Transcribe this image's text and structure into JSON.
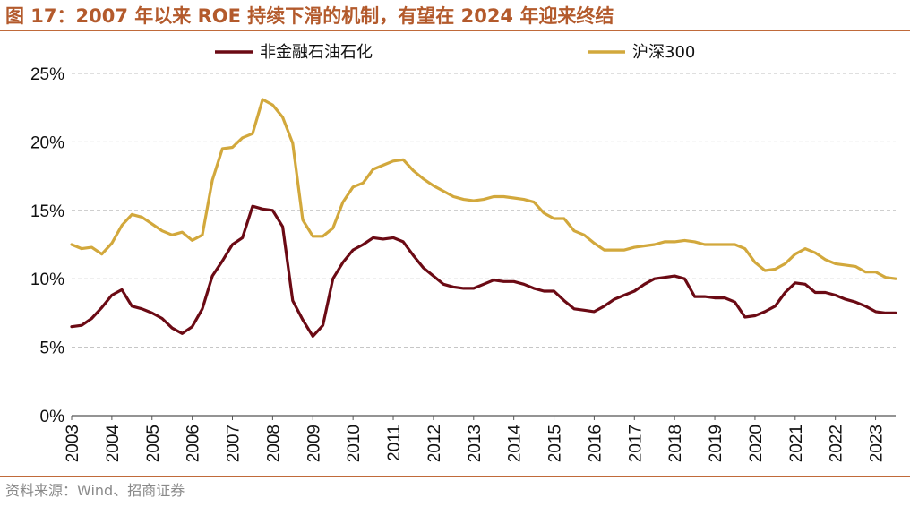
{
  "header": {
    "title": "图 17：2007 年以来 ROE 持续下滑的机制，有望在 2024 年迎来终结"
  },
  "footer": {
    "source": "资料来源：Wind、招商证券"
  },
  "colors": {
    "accent": "#c06a3a",
    "title": "#b35a2c",
    "series_a": "#6b0a14",
    "series_b": "#d2a83c",
    "grid": "#bfbfbf"
  },
  "chart_data": {
    "type": "line",
    "title": "",
    "xlabel": "",
    "ylabel": "",
    "x_range": [
      2003.0,
      2023.5
    ],
    "ylim": [
      0,
      25
    ],
    "y_ticks": [
      "0%",
      "5%",
      "10%",
      "15%",
      "20%",
      "25%"
    ],
    "y_tick_values": [
      0,
      5,
      10,
      15,
      20,
      25
    ],
    "x_ticks": [
      "2003",
      "2004",
      "2005",
      "2006",
      "2007",
      "2008",
      "2009",
      "2010",
      "2011",
      "2012",
      "2013",
      "2014",
      "2015",
      "2016",
      "2017",
      "2018",
      "2019",
      "2020",
      "2021",
      "2022",
      "2023"
    ],
    "grid": "horizontal-dashed",
    "legend_position": "top",
    "series": [
      {
        "name": "非金融石油石化",
        "color": "#6b0a14",
        "x": [
          2003.0,
          2003.25,
          2003.5,
          2003.75,
          2004.0,
          2004.25,
          2004.5,
          2004.75,
          2005.0,
          2005.25,
          2005.5,
          2005.75,
          2006.0,
          2006.25,
          2006.5,
          2006.75,
          2007.0,
          2007.25,
          2007.5,
          2007.75,
          2008.0,
          2008.25,
          2008.5,
          2008.75,
          2009.0,
          2009.25,
          2009.5,
          2009.75,
          2010.0,
          2010.25,
          2010.5,
          2010.75,
          2011.0,
          2011.25,
          2011.5,
          2011.75,
          2012.0,
          2012.25,
          2012.5,
          2012.75,
          2013.0,
          2013.25,
          2013.5,
          2013.75,
          2014.0,
          2014.25,
          2014.5,
          2014.75,
          2015.0,
          2015.25,
          2015.5,
          2015.75,
          2016.0,
          2016.25,
          2016.5,
          2016.75,
          2017.0,
          2017.25,
          2017.5,
          2017.75,
          2018.0,
          2018.25,
          2018.5,
          2018.75,
          2019.0,
          2019.25,
          2019.5,
          2019.75,
          2020.0,
          2020.25,
          2020.5,
          2020.75,
          2021.0,
          2021.25,
          2021.5,
          2021.75,
          2022.0,
          2022.25,
          2022.5,
          2022.75,
          2023.0,
          2023.25,
          2023.5
        ],
        "values": [
          6.5,
          6.6,
          7.1,
          7.9,
          8.8,
          9.2,
          8.0,
          7.8,
          7.5,
          7.1,
          6.4,
          6.0,
          6.5,
          7.8,
          10.2,
          11.3,
          12.5,
          13.0,
          15.3,
          15.1,
          15.0,
          13.8,
          8.4,
          7.0,
          5.8,
          6.6,
          10.0,
          11.2,
          12.1,
          12.5,
          13.0,
          12.9,
          13.0,
          12.7,
          11.7,
          10.8,
          10.2,
          9.6,
          9.4,
          9.3,
          9.3,
          9.6,
          9.9,
          9.8,
          9.8,
          9.6,
          9.3,
          9.1,
          9.1,
          8.4,
          7.8,
          7.7,
          7.6,
          8.0,
          8.5,
          8.8,
          9.1,
          9.6,
          10.0,
          10.1,
          10.2,
          10.0,
          8.7,
          8.7,
          8.6,
          8.6,
          8.3,
          7.2,
          7.3,
          7.6,
          8.0,
          9.0,
          9.7,
          9.6,
          9.0,
          9.0,
          8.8,
          8.5,
          8.3,
          8.0,
          7.6,
          7.5,
          7.5
        ]
      },
      {
        "name": "沪深300",
        "color": "#d2a83c",
        "x": [
          2003.0,
          2003.25,
          2003.5,
          2003.75,
          2004.0,
          2004.25,
          2004.5,
          2004.75,
          2005.0,
          2005.25,
          2005.5,
          2005.75,
          2006.0,
          2006.25,
          2006.5,
          2006.75,
          2007.0,
          2007.25,
          2007.5,
          2007.75,
          2008.0,
          2008.25,
          2008.5,
          2008.75,
          2009.0,
          2009.25,
          2009.5,
          2009.75,
          2010.0,
          2010.25,
          2010.5,
          2010.75,
          2011.0,
          2011.25,
          2011.5,
          2011.75,
          2012.0,
          2012.25,
          2012.5,
          2012.75,
          2013.0,
          2013.25,
          2013.5,
          2013.75,
          2014.0,
          2014.25,
          2014.5,
          2014.75,
          2015.0,
          2015.25,
          2015.5,
          2015.75,
          2016.0,
          2016.25,
          2016.5,
          2016.75,
          2017.0,
          2017.25,
          2017.5,
          2017.75,
          2018.0,
          2018.25,
          2018.5,
          2018.75,
          2019.0,
          2019.25,
          2019.5,
          2019.75,
          2020.0,
          2020.25,
          2020.5,
          2020.75,
          2021.0,
          2021.25,
          2021.5,
          2021.75,
          2022.0,
          2022.25,
          2022.5,
          2022.75,
          2023.0,
          2023.25,
          2023.5
        ],
        "values": [
          12.5,
          12.2,
          12.3,
          11.8,
          12.6,
          13.9,
          14.7,
          14.5,
          14.0,
          13.5,
          13.2,
          13.4,
          12.8,
          13.2,
          17.2,
          19.5,
          19.6,
          20.3,
          20.6,
          23.1,
          22.7,
          21.8,
          19.9,
          14.3,
          13.1,
          13.1,
          13.7,
          15.6,
          16.7,
          17.0,
          18.0,
          18.3,
          18.6,
          18.7,
          17.9,
          17.3,
          16.8,
          16.4,
          16.0,
          15.8,
          15.7,
          15.8,
          16.0,
          16.0,
          15.9,
          15.8,
          15.6,
          14.8,
          14.4,
          14.4,
          13.5,
          13.2,
          12.6,
          12.1,
          12.1,
          12.1,
          12.3,
          12.4,
          12.5,
          12.7,
          12.7,
          12.8,
          12.7,
          12.5,
          12.5,
          12.5,
          12.5,
          12.2,
          11.2,
          10.6,
          10.7,
          11.1,
          11.8,
          12.2,
          11.9,
          11.4,
          11.1,
          11.0,
          10.9,
          10.5,
          10.5,
          10.1,
          10.0
        ]
      }
    ]
  }
}
